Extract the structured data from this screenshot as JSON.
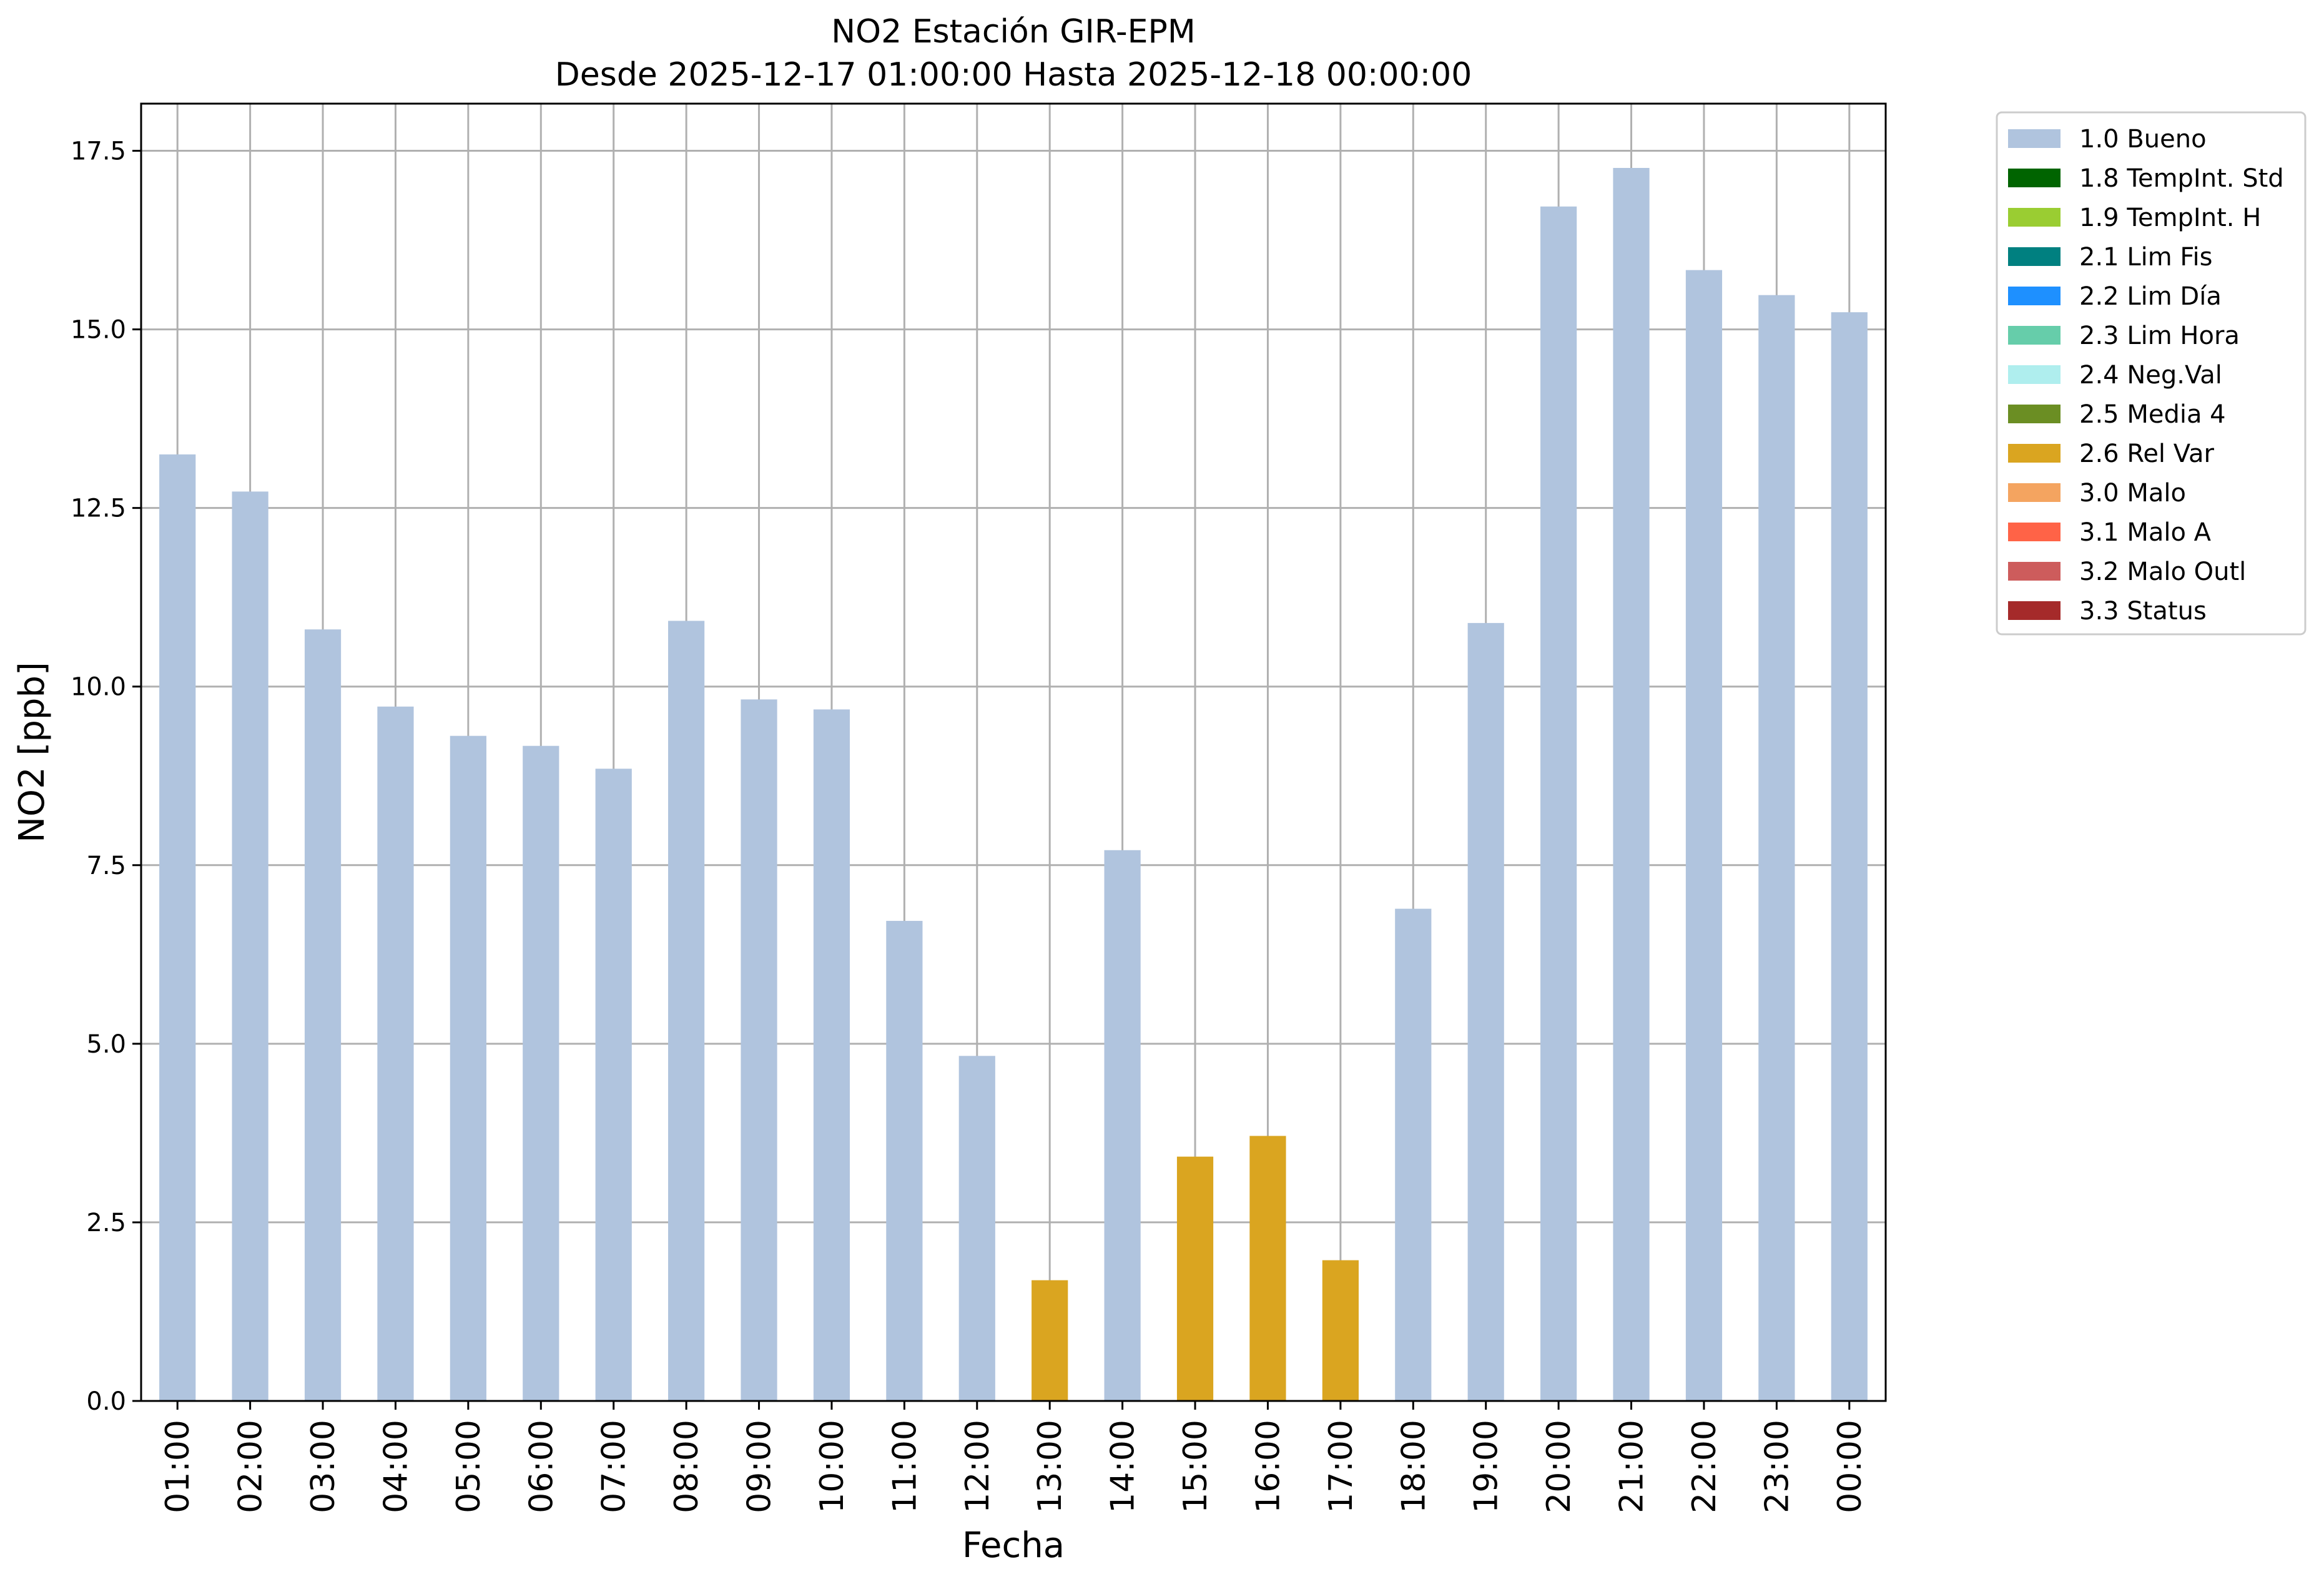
{
  "chart_data": {
    "type": "bar",
    "title": "NO2 Estación GIR-EPM",
    "subtitle": "Desde 2025-12-17 01:00:00 Hasta 2025-12-18 00:00:00",
    "xlabel": "Fecha",
    "ylabel": "NO2 [ppb]",
    "ylim": [
      0,
      18.16
    ],
    "yticks": [
      "0.0",
      "2.5",
      "5.0",
      "7.5",
      "10.0",
      "12.5",
      "15.0",
      "17.5"
    ],
    "grid": true,
    "legend_position": "outside-top-right",
    "categories": [
      "01:00",
      "02:00",
      "03:00",
      "04:00",
      "05:00",
      "06:00",
      "07:00",
      "08:00",
      "09:00",
      "10:00",
      "11:00",
      "12:00",
      "13:00",
      "14:00",
      "15:00",
      "16:00",
      "17:00",
      "18:00",
      "19:00",
      "20:00",
      "21:00",
      "22:00",
      "23:00",
      "00:00"
    ],
    "values": [
      13.25,
      12.73,
      10.8,
      9.72,
      9.31,
      9.17,
      8.85,
      10.92,
      9.82,
      9.68,
      6.72,
      4.83,
      1.69,
      7.71,
      3.42,
      3.71,
      1.97,
      6.89,
      10.89,
      16.72,
      17.26,
      15.83,
      15.48,
      15.24
    ],
    "flags": [
      "1.0 Bueno",
      "1.0 Bueno",
      "1.0 Bueno",
      "1.0 Bueno",
      "1.0 Bueno",
      "1.0 Bueno",
      "1.0 Bueno",
      "1.0 Bueno",
      "1.0 Bueno",
      "1.0 Bueno",
      "1.0 Bueno",
      "1.0 Bueno",
      "2.6 Rel Var",
      "1.0 Bueno",
      "2.6 Rel Var",
      "2.6 Rel Var",
      "2.6 Rel Var",
      "1.0 Bueno",
      "1.0 Bueno",
      "1.0 Bueno",
      "1.0 Bueno",
      "1.0 Bueno",
      "1.0 Bueno",
      "1.0 Bueno"
    ],
    "legend": [
      {
        "label": "1.0 Bueno",
        "color": "#b0c4de"
      },
      {
        "label": "1.8 TempInt. Std",
        "color": "#006400"
      },
      {
        "label": "1.9 TempInt. H",
        "color": "#9acd32"
      },
      {
        "label": "2.1 Lim Fis",
        "color": "#008080"
      },
      {
        "label": "2.2 Lim Día",
        "color": "#1e90ff"
      },
      {
        "label": "2.3 Lim Hora",
        "color": "#66cdaa"
      },
      {
        "label": "2.4 Neg.Val",
        "color": "#afeeee"
      },
      {
        "label": "2.5 Media 4",
        "color": "#6b8e23"
      },
      {
        "label": "2.6 Rel Var",
        "color": "#daa520"
      },
      {
        "label": "3.0 Malo",
        "color": "#f4a460"
      },
      {
        "label": "3.1 Malo A",
        "color": "#ff6347"
      },
      {
        "label": "3.2 Malo Outl",
        "color": "#cd5c5c"
      },
      {
        "label": "3.3 Status",
        "color": "#a52a2a"
      }
    ]
  }
}
